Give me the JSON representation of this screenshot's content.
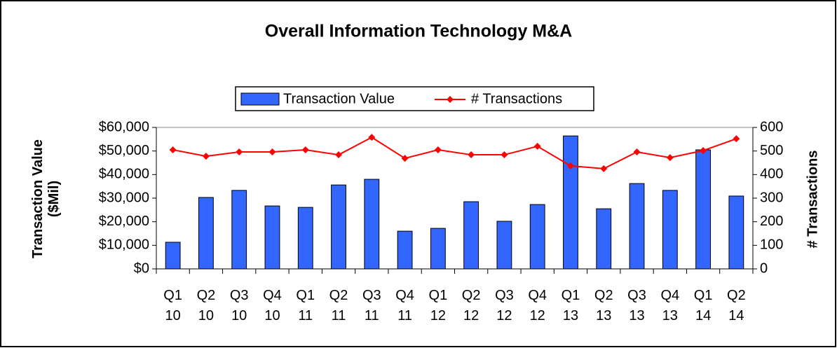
{
  "chart_data": {
    "type": "bar_line",
    "title": "Overall Information Technology M&A",
    "categories": [
      "Q1 10",
      "Q2 10",
      "Q3 10",
      "Q4 10",
      "Q1 11",
      "Q2 11",
      "Q3 11",
      "Q4 11",
      "Q1 12",
      "Q2 12",
      "Q3 12",
      "Q4 12",
      "Q1 13",
      "Q2 13",
      "Q3 13",
      "Q4 13",
      "Q1 14",
      "Q2 14"
    ],
    "series": [
      {
        "name": "Transaction Value",
        "color": "#3366ff",
        "values": [
          11300,
          30300,
          33300,
          26700,
          26100,
          35600,
          38000,
          16000,
          17200,
          28500,
          20200,
          27300,
          56400,
          25500,
          36200,
          33300,
          50500,
          30900
        ]
      },
      {
        "name": "# Transactions",
        "color": "#ff0000",
        "axis": "y2",
        "values": [
          505,
          478,
          496,
          496,
          505,
          484,
          558,
          469,
          505,
          484,
          484,
          520,
          437,
          425,
          496,
          472,
          502,
          552
        ]
      }
    ],
    "y_label": "Transaction Value ($Mil)",
    "y2_label": "# Transactions",
    "ylim": [
      0,
      60000
    ],
    "yticks": [
      {
        "value": 0,
        "label": "$0"
      },
      {
        "value": 10000,
        "label": "$10,000"
      },
      {
        "value": 20000,
        "label": "$20,000"
      },
      {
        "value": 30000,
        "label": "$30,000"
      },
      {
        "value": 40000,
        "label": "$40,000"
      },
      {
        "value": 50000,
        "label": "$50,000"
      },
      {
        "value": 60000,
        "label": "$60,000"
      }
    ],
    "y2lim": [
      0,
      600
    ],
    "y2ticks": [
      0,
      100,
      200,
      300,
      400,
      500,
      600
    ],
    "legend": "top"
  }
}
